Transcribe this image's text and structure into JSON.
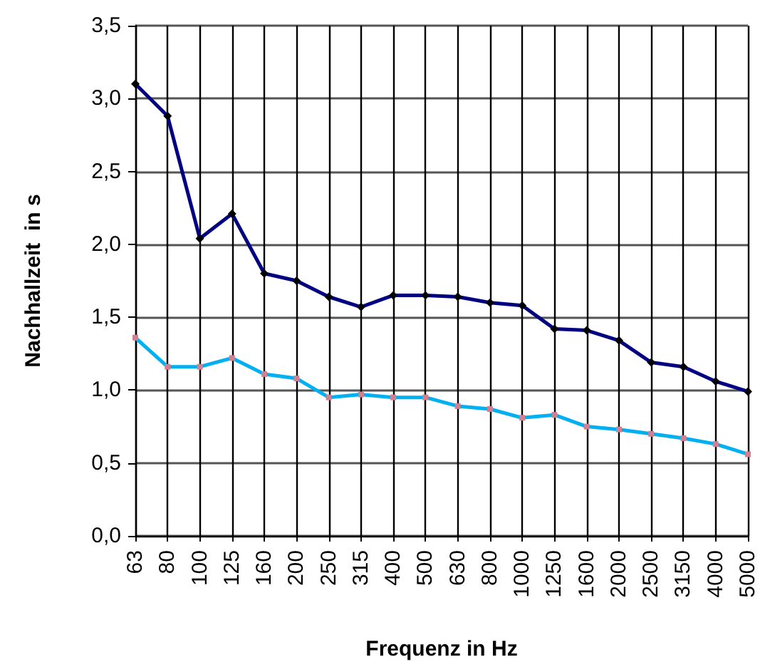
{
  "chart_data": {
    "type": "line",
    "xlabel": "Frequenz in Hz",
    "ylabel": "Nachhallzeit  in s",
    "categories": [
      "63",
      "80",
      "100",
      "125",
      "160",
      "200",
      "250",
      "315",
      "400",
      "500",
      "630",
      "800",
      "1000",
      "1250",
      "1600",
      "2000",
      "2500",
      "3150",
      "4000",
      "5000"
    ],
    "series": [
      {
        "color": "#000080",
        "marker": "diamond",
        "values": [
          3.1,
          2.88,
          2.04,
          2.21,
          1.8,
          1.75,
          1.64,
          1.57,
          1.65,
          1.65,
          1.64,
          1.6,
          1.58,
          1.42,
          1.41,
          1.34,
          1.19,
          1.16,
          1.06,
          0.99
        ]
      },
      {
        "color": "#00b0f0",
        "marker": "square",
        "values": [
          1.36,
          1.16,
          1.16,
          1.22,
          1.11,
          1.08,
          0.95,
          0.97,
          0.95,
          0.95,
          0.89,
          0.87,
          0.81,
          0.83,
          0.75,
          0.73,
          0.7,
          0.67,
          0.63,
          0.56
        ]
      }
    ],
    "ylim": [
      0,
      3.5
    ],
    "yticks": [
      {
        "value": 0,
        "label": "0,0"
      },
      {
        "value": 0.5,
        "label": "0,5"
      },
      {
        "value": 1,
        "label": "1,0"
      },
      {
        "value": 1.5,
        "label": "1,5"
      },
      {
        "value": 2,
        "label": "2,0"
      },
      {
        "value": 2.5,
        "label": "2,5"
      },
      {
        "value": 3,
        "label": "3,0"
      },
      {
        "value": 3.5,
        "label": "3,5"
      }
    ],
    "grid": true,
    "line_style": "solid"
  }
}
